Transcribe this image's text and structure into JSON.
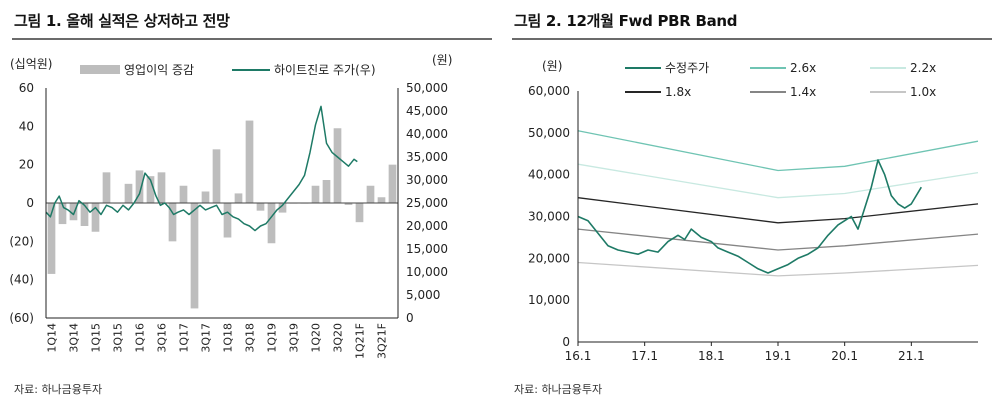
{
  "panel1": {
    "title": "그림 1. 올해 실적은 상저하고 전망",
    "source": "자료: 하나금융투자",
    "chart_data": {
      "type": "bar",
      "left_unit": "(십억원)",
      "right_unit": "(원)",
      "legend": [
        "영업이익 증감",
        "하이트진로 주가(우)"
      ],
      "legend_placement": "top",
      "left_axis": {
        "min": -60,
        "max": 60,
        "ticks": [
          "60",
          "40",
          "20",
          "0",
          "(20)",
          "(40)",
          "(60)"
        ]
      },
      "right_axis": {
        "min": 0,
        "max": 50000,
        "ticks": [
          "50,000",
          "45,000",
          "40,000",
          "35,000",
          "30,000",
          "25,000",
          "20,000",
          "15,000",
          "10,000",
          "5,000",
          "0"
        ]
      },
      "x_labels": [
        "1Q14",
        "3Q14",
        "1Q15",
        "3Q15",
        "1Q16",
        "3Q16",
        "1Q17",
        "3Q17",
        "1Q18",
        "3Q18",
        "1Q19",
        "3Q19",
        "1Q20",
        "3Q20",
        "1Q21F",
        "3Q21F"
      ],
      "bar_quarters": 32,
      "bars": [
        -37,
        -11,
        -9,
        -12,
        -15,
        16,
        0,
        10,
        17,
        14,
        16,
        -20,
        9,
        -55,
        6,
        28,
        -18,
        5,
        43,
        -4,
        -21,
        -5,
        0,
        0,
        9,
        12,
        39,
        -1,
        -10,
        9,
        3,
        20
      ],
      "price_series": {
        "name": "하이트진로 주가(우)",
        "x_quarters": [
          0,
          0.4,
          0.8,
          1.2,
          1.6,
          2.0,
          2.5,
          3.0,
          3.5,
          4.0,
          4.5,
          5.0,
          5.5,
          6.0,
          6.5,
          7.0,
          7.5,
          8.0,
          8.5,
          9.0,
          9.5,
          10.0,
          10.4,
          10.8,
          11.2,
          11.6,
          12.0,
          12.5,
          13.0,
          13.5,
          14.0,
          14.5,
          15.0,
          15.5,
          16.0,
          16.5,
          17.0,
          17.5,
          18.0,
          18.5,
          19.0,
          19.5,
          20.0,
          20.5,
          21.0,
          21.5,
          22.0,
          22.5,
          23.0,
          23.5,
          24.0,
          24.5,
          25.0,
          25.5,
          26.0,
          26.5,
          27.0,
          27.5,
          28.0,
          28.3
        ],
        "values": [
          23000,
          22000,
          25000,
          26500,
          24000,
          23500,
          22500,
          25500,
          24500,
          23000,
          24000,
          22500,
          24500,
          24000,
          23000,
          24500,
          23500,
          25000,
          27000,
          31500,
          30000,
          26500,
          24500,
          25000,
          24000,
          22500,
          23000,
          23500,
          22500,
          23500,
          24500,
          23500,
          24000,
          24500,
          22500,
          23000,
          22000,
          21500,
          20500,
          20000,
          19000,
          20000,
          20500,
          22000,
          23500,
          24500,
          26000,
          27500,
          29000,
          31000,
          36000,
          42000,
          46000,
          38000,
          36000,
          35000,
          34000,
          33000,
          34500,
          34000
        ]
      }
    }
  },
  "panel2": {
    "title": "그림 2. 12개월 Fwd PBR Band",
    "source": "자료: 하나금융투자",
    "chart_data": {
      "type": "line",
      "y_unit": "(원)",
      "ylim": [
        0,
        60000
      ],
      "y_ticks": [
        "60,000",
        "50,000",
        "40,000",
        "30,000",
        "20,000",
        "10,000",
        "0"
      ],
      "x_range": [
        2016.0,
        2022.0
      ],
      "x_ticks": [
        {
          "x": 2016.0,
          "label": "16.1"
        },
        {
          "x": 2017.0,
          "label": "17.1"
        },
        {
          "x": 2018.0,
          "label": "18.1"
        },
        {
          "x": 2019.0,
          "label": "19.1"
        },
        {
          "x": 2020.0,
          "label": "20.1"
        },
        {
          "x": 2021.0,
          "label": "21.1"
        }
      ],
      "legend_placement": "top",
      "series": [
        {
          "name": "수정주가",
          "color": "#1e7a66",
          "width": 1.6,
          "x": [
            2016.0,
            2016.15,
            2016.3,
            2016.45,
            2016.6,
            2016.75,
            2016.9,
            2017.05,
            2017.2,
            2017.35,
            2017.5,
            2017.6,
            2017.7,
            2017.85,
            2018.0,
            2018.1,
            2018.25,
            2018.4,
            2018.55,
            2018.7,
            2018.85,
            2019.0,
            2019.15,
            2019.3,
            2019.45,
            2019.6,
            2019.75,
            2019.9,
            2020.0,
            2020.1,
            2020.2,
            2020.3,
            2020.4,
            2020.5,
            2020.6,
            2020.7,
            2020.8,
            2020.9,
            2021.0,
            2021.15
          ],
          "values": [
            30000,
            29000,
            26000,
            23000,
            22000,
            21500,
            21000,
            22000,
            21500,
            24000,
            25500,
            24500,
            27000,
            25000,
            24000,
            22500,
            21500,
            20500,
            19000,
            17500,
            16500,
            17500,
            18500,
            20000,
            21000,
            22500,
            25500,
            28000,
            29000,
            30000,
            27000,
            32000,
            37000,
            43500,
            40000,
            35000,
            33000,
            32000,
            33000,
            37000
          ]
        },
        {
          "name": "2.6x",
          "color": "#6fc4b3",
          "width": 1.3,
          "x": [
            2016.0,
            2019.0,
            2020.0,
            2022.0
          ],
          "values": [
            50500,
            41000,
            42000,
            48000
          ]
        },
        {
          "name": "2.2x",
          "color": "#c8e9e1",
          "width": 1.3,
          "x": [
            2016.0,
            2019.0,
            2020.0,
            2022.0
          ],
          "values": [
            42500,
            34500,
            35500,
            40500
          ]
        },
        {
          "name": "1.8x",
          "color": "#262626",
          "width": 1.3,
          "x": [
            2016.0,
            2019.0,
            2020.0,
            2022.0
          ],
          "values": [
            34500,
            28500,
            29500,
            33000
          ]
        },
        {
          "name": "1.4x",
          "color": "#858585",
          "width": 1.3,
          "x": [
            2016.0,
            2019.0,
            2020.0,
            2022.0
          ],
          "values": [
            27000,
            22000,
            23000,
            25800
          ]
        },
        {
          "name": "1.0x",
          "color": "#c6c6c6",
          "width": 1.3,
          "x": [
            2016.0,
            2019.0,
            2020.0,
            2022.0
          ],
          "values": [
            19000,
            15800,
            16500,
            18300
          ]
        }
      ]
    }
  },
  "colors": {
    "bar": "#bdbdbd",
    "price_line": "#1e7a66",
    "axis": "#222222"
  }
}
